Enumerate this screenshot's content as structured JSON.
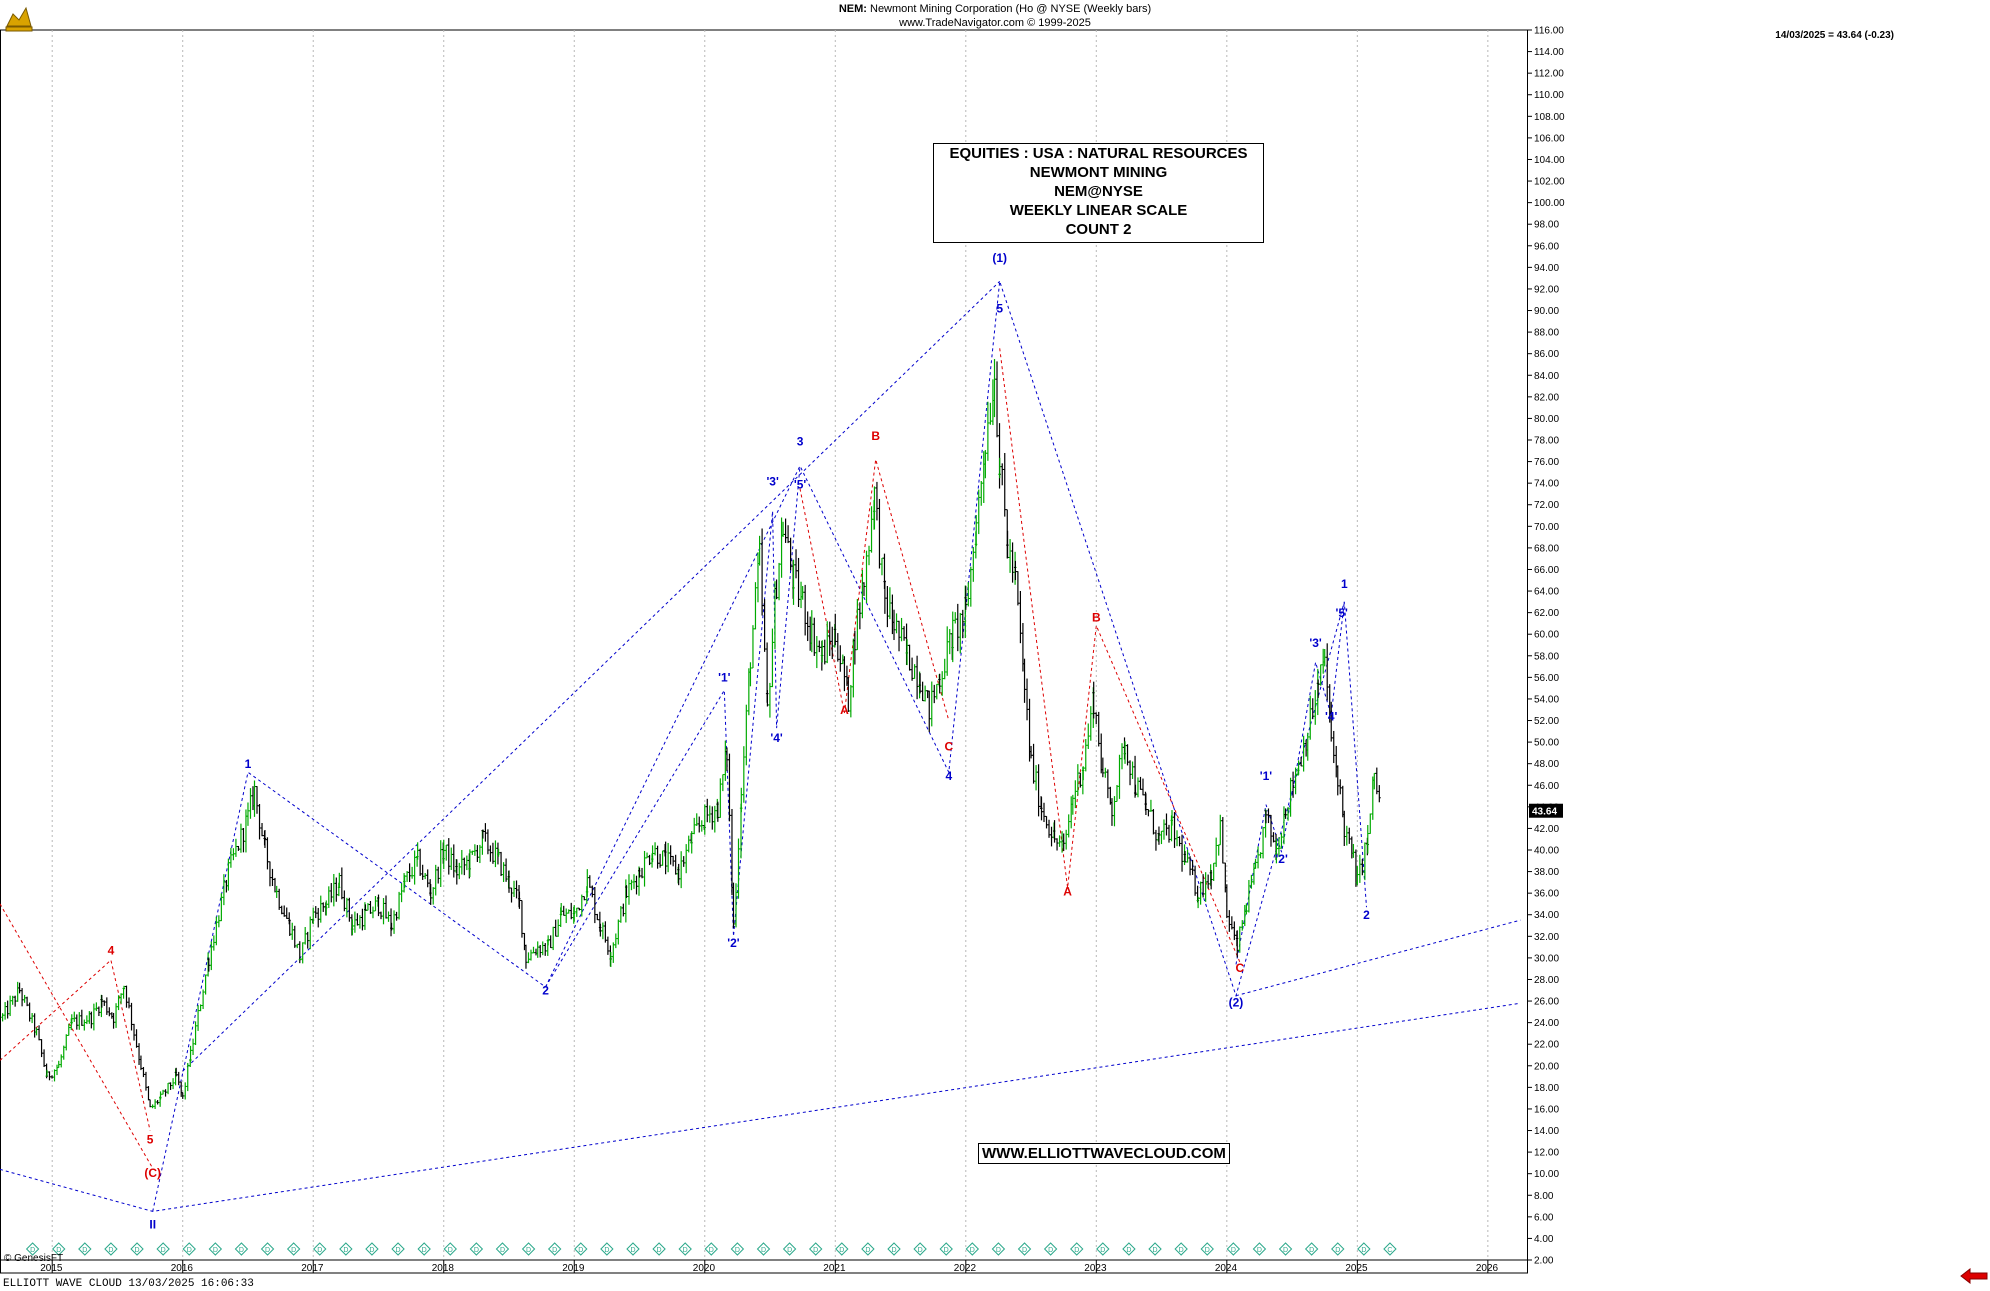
{
  "header": {
    "symbol": "NEM:",
    "title": "Newmont Mining Corporation (Ho @ NYSE  (Weekly bars)",
    "source": "www.TradeNavigator.com © 1999-2025"
  },
  "last_info": "14/03/2025 = 43.64 (-0.23)",
  "last_price": "43.64",
  "info_box": [
    "EQUITIES : USA : NATURAL RESOURCES",
    "NEWMONT MINING",
    "NEM@NYSE",
    "WEEKLY LINEAR SCALE",
    "COUNT 2"
  ],
  "url_label": "WWW.ELLIOTTWAVECLOUD.COM",
  "footer": "ELLIOTT WAVE CLOUD   13/03/2025 16:06:33",
  "copyright": "© GenesisFT",
  "colors": {
    "bull": "#00aa00",
    "bear": "#000000",
    "blue_wave": "#0000cc",
    "red_wave": "#dd0000",
    "grid": "#b8b8b8"
  },
  "chart_data": {
    "type": "line",
    "xlabel": "",
    "ylabel": "",
    "ylim": [
      2,
      116
    ],
    "xlim": [
      2014.6,
      2026.3
    ],
    "grid": true,
    "x_ticks": [
      "2015",
      "2016",
      "2017",
      "2018",
      "2019",
      "2020",
      "2021",
      "2022",
      "2023",
      "2024",
      "2025",
      "2026"
    ],
    "y_ticks": [
      "2.00",
      "4.00",
      "6.00",
      "8.00",
      "10.00",
      "12.00",
      "14.00",
      "16.00",
      "18.00",
      "20.00",
      "22.00",
      "24.00",
      "26.00",
      "28.00",
      "30.00",
      "32.00",
      "34.00",
      "36.00",
      "38.00",
      "40.00",
      "42.00",
      "44.00",
      "46.00",
      "48.00",
      "50.00",
      "52.00",
      "54.00",
      "56.00",
      "58.00",
      "60.00",
      "62.00",
      "64.00",
      "66.00",
      "68.00",
      "70.00",
      "72.00",
      "74.00",
      "76.00",
      "78.00",
      "80.00",
      "82.00",
      "84.00",
      "86.00",
      "88.00",
      "90.00",
      "92.00",
      "94.00",
      "96.00",
      "98.00",
      "100.00",
      "102.00",
      "104.00",
      "106.00",
      "108.00",
      "110.00",
      "112.00",
      "114.00",
      "116.00"
    ],
    "series": [
      {
        "points": [
          [
            2014.62,
            24.5
          ],
          [
            2014.75,
            27
          ],
          [
            2014.88,
            23
          ],
          [
            2014.96,
            19
          ],
          [
            2015.05,
            20
          ],
          [
            2015.15,
            24
          ],
          [
            2015.3,
            24.5
          ],
          [
            2015.38,
            26
          ],
          [
            2015.47,
            24.5
          ],
          [
            2015.55,
            27.5
          ],
          [
            2015.68,
            20
          ],
          [
            2015.75,
            16
          ],
          [
            2015.83,
            17
          ],
          [
            2015.95,
            19
          ],
          [
            2016.0,
            17
          ],
          [
            2016.06,
            21
          ],
          [
            2016.2,
            30
          ],
          [
            2016.35,
            38
          ],
          [
            2016.5,
            43
          ],
          [
            2016.55,
            45.5
          ],
          [
            2016.63,
            40
          ],
          [
            2016.72,
            36
          ],
          [
            2016.82,
            33
          ],
          [
            2016.9,
            30
          ],
          [
            2017.0,
            34
          ],
          [
            2017.1,
            35
          ],
          [
            2017.2,
            37
          ],
          [
            2017.3,
            33
          ],
          [
            2017.4,
            34
          ],
          [
            2017.5,
            35
          ],
          [
            2017.6,
            33
          ],
          [
            2017.7,
            37
          ],
          [
            2017.8,
            39
          ],
          [
            2017.9,
            36
          ],
          [
            2018.0,
            40
          ],
          [
            2018.1,
            38
          ],
          [
            2018.2,
            39
          ],
          [
            2018.3,
            41
          ],
          [
            2018.42,
            39
          ],
          [
            2018.5,
            37
          ],
          [
            2018.58,
            35
          ],
          [
            2018.63,
            30
          ],
          [
            2018.72,
            31
          ],
          [
            2018.8,
            31
          ],
          [
            2018.9,
            34
          ],
          [
            2019.0,
            34
          ],
          [
            2019.1,
            37
          ],
          [
            2019.2,
            33
          ],
          [
            2019.28,
            30.5
          ],
          [
            2019.4,
            36
          ],
          [
            2019.5,
            38
          ],
          [
            2019.6,
            40
          ],
          [
            2019.7,
            39
          ],
          [
            2019.8,
            38
          ],
          [
            2019.9,
            41
          ],
          [
            2020.0,
            43
          ],
          [
            2020.1,
            44
          ],
          [
            2020.17,
            49
          ],
          [
            2020.22,
            33
          ],
          [
            2020.28,
            45
          ],
          [
            2020.35,
            58
          ],
          [
            2020.42,
            67
          ],
          [
            2020.48,
            53
          ],
          [
            2020.55,
            65
          ],
          [
            2020.6,
            70
          ],
          [
            2020.68,
            65
          ],
          [
            2020.75,
            63
          ],
          [
            2020.82,
            60
          ],
          [
            2020.9,
            58
          ],
          [
            2021.0,
            60
          ],
          [
            2021.07,
            56
          ],
          [
            2021.1,
            54
          ],
          [
            2021.15,
            60
          ],
          [
            2021.22,
            65
          ],
          [
            2021.3,
            73
          ],
          [
            2021.38,
            63
          ],
          [
            2021.45,
            61
          ],
          [
            2021.55,
            58
          ],
          [
            2021.65,
            56
          ],
          [
            2021.72,
            53
          ],
          [
            2021.8,
            56
          ],
          [
            2021.9,
            60
          ],
          [
            2022.0,
            62
          ],
          [
            2022.08,
            70
          ],
          [
            2022.15,
            78
          ],
          [
            2022.22,
            84
          ],
          [
            2022.26,
            76
          ],
          [
            2022.32,
            68
          ],
          [
            2022.38,
            65
          ],
          [
            2022.45,
            55
          ],
          [
            2022.5,
            48
          ],
          [
            2022.58,
            44
          ],
          [
            2022.68,
            41
          ],
          [
            2022.75,
            40
          ],
          [
            2022.82,
            45
          ],
          [
            2022.9,
            48
          ],
          [
            2022.98,
            54
          ],
          [
            2023.05,
            47
          ],
          [
            2023.12,
            44
          ],
          [
            2023.22,
            50
          ],
          [
            2023.3,
            46
          ],
          [
            2023.38,
            44
          ],
          [
            2023.48,
            41
          ],
          [
            2023.58,
            42
          ],
          [
            2023.68,
            39
          ],
          [
            2023.78,
            36
          ],
          [
            2023.88,
            38
          ],
          [
            2023.95,
            42
          ],
          [
            2024.0,
            34
          ],
          [
            2024.08,
            31
          ],
          [
            2024.15,
            35
          ],
          [
            2024.22,
            38
          ],
          [
            2024.3,
            43
          ],
          [
            2024.38,
            40
          ],
          [
            2024.45,
            44
          ],
          [
            2024.55,
            48
          ],
          [
            2024.62,
            51
          ],
          [
            2024.7,
            55
          ],
          [
            2024.75,
            58
          ],
          [
            2024.8,
            50
          ],
          [
            2024.85,
            47
          ],
          [
            2024.9,
            42
          ],
          [
            2024.97,
            39
          ],
          [
            2025.0,
            37
          ],
          [
            2025.08,
            41
          ],
          [
            2025.13,
            47
          ],
          [
            2025.18,
            43.64
          ]
        ]
      }
    ],
    "labels": [
      {
        "text": "(1)",
        "x": 2022.26,
        "y": 94.5,
        "color": "blue"
      },
      {
        "text": "5",
        "x": 2022.26,
        "y": 89.8,
        "color": "blue"
      },
      {
        "text": "3",
        "x": 2020.73,
        "y": 77.5,
        "color": "blue"
      },
      {
        "text": "'3'",
        "x": 2020.52,
        "y": 73.8,
        "color": "blue"
      },
      {
        "text": "'5'",
        "x": 2020.73,
        "y": 73.5,
        "color": "blue"
      },
      {
        "text": "B",
        "x": 2021.31,
        "y": 78,
        "color": "red"
      },
      {
        "text": "A",
        "x": 2021.07,
        "y": 52.6,
        "color": "red"
      },
      {
        "text": "C",
        "x": 2021.87,
        "y": 49.2,
        "color": "red"
      },
      {
        "text": "4",
        "x": 2021.87,
        "y": 46.5,
        "color": "blue"
      },
      {
        "text": "'1'",
        "x": 2020.15,
        "y": 55.6,
        "color": "blue"
      },
      {
        "text": "'4'",
        "x": 2020.55,
        "y": 50,
        "color": "blue"
      },
      {
        "text": "'2'",
        "x": 2020.22,
        "y": 31,
        "color": "blue"
      },
      {
        "text": "1",
        "x": 2016.5,
        "y": 47.6,
        "color": "blue"
      },
      {
        "text": "2",
        "x": 2018.78,
        "y": 26.6,
        "color": "blue"
      },
      {
        "text": "4",
        "x": 2015.45,
        "y": 30.3,
        "color": "red"
      },
      {
        "text": "5",
        "x": 2015.75,
        "y": 12.8,
        "color": "red"
      },
      {
        "text": "(C)",
        "x": 2015.77,
        "y": 9.7,
        "color": "red"
      },
      {
        "text": "II",
        "x": 2015.77,
        "y": 4.9,
        "color": "blue"
      },
      {
        "text": "B",
        "x": 2023.0,
        "y": 61.2,
        "color": "red"
      },
      {
        "text": "A",
        "x": 2022.78,
        "y": 35.8,
        "color": "red"
      },
      {
        "text": "C",
        "x": 2024.1,
        "y": 28.7,
        "color": "red"
      },
      {
        "text": "(2)",
        "x": 2024.07,
        "y": 25.5,
        "color": "blue"
      },
      {
        "text": "'1'",
        "x": 2024.3,
        "y": 46.5,
        "color": "blue"
      },
      {
        "text": "'2'",
        "x": 2024.42,
        "y": 38.8,
        "color": "blue"
      },
      {
        "text": "'3'",
        "x": 2024.68,
        "y": 58.8,
        "color": "blue"
      },
      {
        "text": "'4'",
        "x": 2024.8,
        "y": 52,
        "color": "blue"
      },
      {
        "text": "'5'",
        "x": 2024.88,
        "y": 61.6,
        "color": "blue"
      },
      {
        "text": "1",
        "x": 2024.9,
        "y": 64.3,
        "color": "blue"
      },
      {
        "text": "2",
        "x": 2025.07,
        "y": 33.6,
        "color": "blue"
      }
    ],
    "wave_lines": [
      {
        "color": "blue",
        "points": [
          [
            2014.6,
            10.4
          ],
          [
            2015.77,
            6.5
          ],
          [
            2026.25,
            25.8
          ]
        ]
      },
      {
        "color": "blue",
        "points": [
          [
            2024.07,
            26.5
          ],
          [
            2026.25,
            33.5
          ]
        ]
      },
      {
        "color": "blue",
        "points": [
          [
            2015.77,
            6.5
          ],
          [
            2016.5,
            47.2
          ],
          [
            2018.78,
            27.3
          ],
          [
            2020.73,
            75.6
          ],
          [
            2021.87,
            47.2
          ],
          [
            2022.26,
            92.7
          ],
          [
            2024.07,
            26.5
          ],
          [
            2024.9,
            63
          ],
          [
            2025.07,
            34.7
          ]
        ]
      },
      {
        "color": "blue",
        "points": [
          [
            2016.0,
            19.5
          ],
          [
            2022.26,
            92.7
          ]
        ]
      },
      {
        "color": "blue",
        "points": [
          [
            2018.78,
            27.3
          ],
          [
            2020.15,
            54.8
          ],
          [
            2020.22,
            32
          ],
          [
            2020.52,
            71.4
          ],
          [
            2020.55,
            51.3
          ],
          [
            2020.73,
            75.6
          ]
        ]
      },
      {
        "color": "blue",
        "points": [
          [
            2024.07,
            29.4
          ],
          [
            2024.3,
            44.2
          ],
          [
            2024.42,
            39.8
          ],
          [
            2024.68,
            57.4
          ],
          [
            2024.8,
            52.5
          ],
          [
            2024.9,
            63
          ]
        ]
      },
      {
        "color": "red",
        "points": [
          [
            2014.6,
            35
          ],
          [
            2015.77,
            10.5
          ]
        ]
      },
      {
        "color": "red",
        "points": [
          [
            2014.6,
            20.5
          ],
          [
            2015.45,
            29.8
          ],
          [
            2015.75,
            14
          ]
        ]
      },
      {
        "color": "red",
        "points": [
          [
            2020.73,
            73.5
          ],
          [
            2021.07,
            52.7
          ],
          [
            2021.31,
            76.2
          ],
          [
            2021.87,
            52
          ]
        ]
      },
      {
        "color": "red",
        "points": [
          [
            2022.26,
            86.5
          ],
          [
            2022.78,
            36.5
          ],
          [
            2023.0,
            60.8
          ],
          [
            2024.1,
            29.6
          ]
        ]
      }
    ],
    "cycle_markers": {
      "symbols": [
        "D",
        "C"
      ]
    }
  }
}
